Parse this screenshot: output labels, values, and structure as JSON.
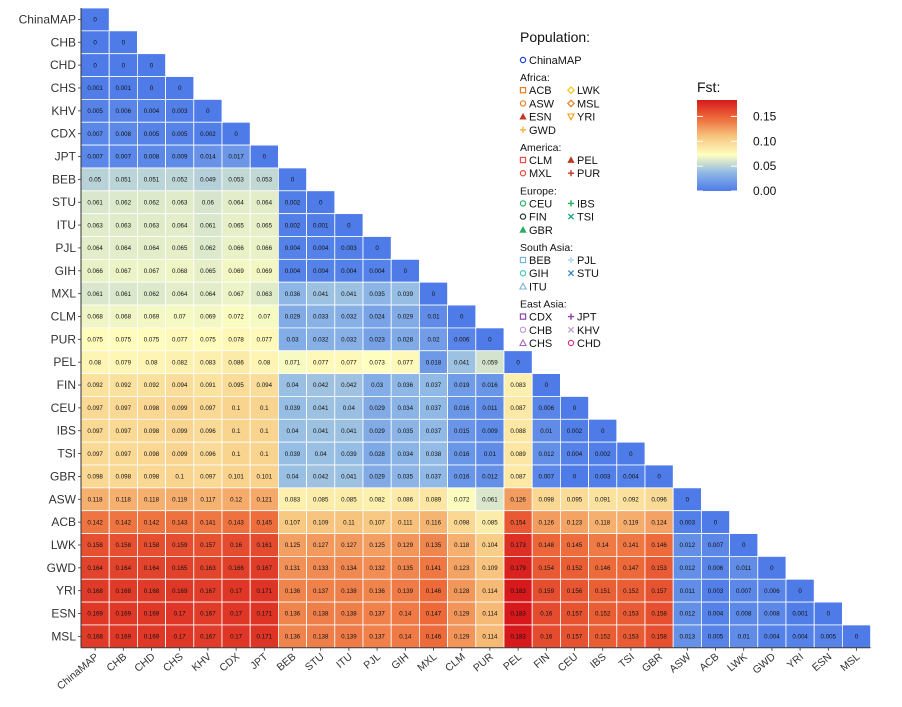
{
  "chart_data": {
    "type": "heatmap",
    "populations": [
      "ChinaMAP",
      "CHB",
      "CHD",
      "CHS",
      "KHV",
      "CDX",
      "JPT",
      "BEB",
      "STU",
      "ITU",
      "PJL",
      "GIH",
      "MXL",
      "CLM",
      "PUR",
      "PEL",
      "FIN",
      "CEU",
      "IBS",
      "TSI",
      "GBR",
      "ASW",
      "ACB",
      "LWK",
      "GWD",
      "YRI",
      "ESN",
      "MSL"
    ],
    "rows": [
      [
        "0"
      ],
      [
        "0",
        "0"
      ],
      [
        "0",
        "0",
        "0"
      ],
      [
        "0.001",
        "0.001",
        "0",
        "0"
      ],
      [
        "0.005",
        "0.006",
        "0.004",
        "0.003",
        "0"
      ],
      [
        "0.007",
        "0.008",
        "0.005",
        "0.005",
        "0.002",
        "0"
      ],
      [
        "0.007",
        "0.007",
        "0.008",
        "0.009",
        "0.014",
        "0.017",
        "0"
      ],
      [
        "0.05",
        "0.051",
        "0.051",
        "0.052",
        "0.049",
        "0.053",
        "0.053",
        "0"
      ],
      [
        "0.061",
        "0.062",
        "0.062",
        "0.063",
        "0.06",
        "0.064",
        "0.064",
        "0.002",
        "0"
      ],
      [
        "0.063",
        "0.063",
        "0.063",
        "0.064",
        "0.061",
        "0.065",
        "0.065",
        "0.002",
        "0.001",
        "0"
      ],
      [
        "0.064",
        "0.064",
        "0.064",
        "0.065",
        "0.062",
        "0.066",
        "0.066",
        "0.004",
        "0.004",
        "0.003",
        "0"
      ],
      [
        "0.066",
        "0.067",
        "0.067",
        "0.068",
        "0.065",
        "0.069",
        "0.069",
        "0.004",
        "0.004",
        "0.004",
        "0.004",
        "0"
      ],
      [
        "0.061",
        "0.061",
        "0.062",
        "0.064",
        "0.064",
        "0.067",
        "0.063",
        "0.036",
        "0.041",
        "0.041",
        "0.035",
        "0.039",
        "0"
      ],
      [
        "0.068",
        "0.068",
        "0.069",
        "0.07",
        "0.069",
        "0.072",
        "0.07",
        "0.029",
        "0.033",
        "0.032",
        "0.024",
        "0.029",
        "0.01",
        "0"
      ],
      [
        "0.075",
        "0.075",
        "0.075",
        "0.077",
        "0.075",
        "0.078",
        "0.077",
        "0.03",
        "0.032",
        "0.032",
        "0.023",
        "0.028",
        "0.02",
        "0.006",
        "0"
      ],
      [
        "0.08",
        "0.079",
        "0.08",
        "0.082",
        "0.083",
        "0.086",
        "0.08",
        "0.071",
        "0.077",
        "0.077",
        "0.073",
        "0.077",
        "0.018",
        "0.041",
        "0.059",
        "0"
      ],
      [
        "0.092",
        "0.092",
        "0.092",
        "0.094",
        "0.091",
        "0.095",
        "0.094",
        "0.04",
        "0.042",
        "0.042",
        "0.03",
        "0.036",
        "0.037",
        "0.019",
        "0.016",
        "0.083",
        "0"
      ],
      [
        "0.097",
        "0.097",
        "0.098",
        "0.099",
        "0.097",
        "0.1",
        "0.1",
        "0.039",
        "0.041",
        "0.04",
        "0.029",
        "0.034",
        "0.037",
        "0.016",
        "0.011",
        "0.087",
        "0.006",
        "0"
      ],
      [
        "0.097",
        "0.097",
        "0.098",
        "0.099",
        "0.096",
        "0.1",
        "0.1",
        "0.04",
        "0.041",
        "0.041",
        "0.029",
        "0.035",
        "0.037",
        "0.015",
        "0.009",
        "0.088",
        "0.01",
        "0.002",
        "0"
      ],
      [
        "0.097",
        "0.097",
        "0.098",
        "0.099",
        "0.096",
        "0.1",
        "0.1",
        "0.039",
        "0.04",
        "0.039",
        "0.028",
        "0.034",
        "0.038",
        "0.016",
        "0.01",
        "0.089",
        "0.012",
        "0.004",
        "0.002",
        "0"
      ],
      [
        "0.098",
        "0.098",
        "0.098",
        "0.1",
        "0.097",
        "0.101",
        "0.101",
        "0.04",
        "0.042",
        "0.041",
        "0.029",
        "0.035",
        "0.037",
        "0.016",
        "0.012",
        "0.087",
        "0.007",
        "0",
        "0.003",
        "0.004",
        "0"
      ],
      [
        "0.118",
        "0.118",
        "0.118",
        "0.119",
        "0.117",
        "0.12",
        "0.121",
        "0.083",
        "0.085",
        "0.085",
        "0.082",
        "0.086",
        "0.089",
        "0.072",
        "0.061",
        "0.126",
        "0.098",
        "0.095",
        "0.091",
        "0.092",
        "0.096",
        "0"
      ],
      [
        "0.142",
        "0.142",
        "0.142",
        "0.143",
        "0.141",
        "0.143",
        "0.145",
        "0.107",
        "0.109",
        "0.11",
        "0.107",
        "0.111",
        "0.116",
        "0.098",
        "0.085",
        "0.154",
        "0.126",
        "0.123",
        "0.118",
        "0.119",
        "0.124",
        "0.003",
        "0"
      ],
      [
        "0.158",
        "0.158",
        "0.158",
        "0.159",
        "0.157",
        "0.16",
        "0.161",
        "0.125",
        "0.127",
        "0.127",
        "0.125",
        "0.129",
        "0.135",
        "0.118",
        "0.104",
        "0.173",
        "0.148",
        "0.145",
        "0.14",
        "0.141",
        "0.146",
        "0.012",
        "0.007",
        "0"
      ],
      [
        "0.164",
        "0.164",
        "0.164",
        "0.165",
        "0.163",
        "0.166",
        "0.167",
        "0.131",
        "0.133",
        "0.134",
        "0.132",
        "0.135",
        "0.141",
        "0.123",
        "0.109",
        "0.179",
        "0.154",
        "0.152",
        "0.146",
        "0.147",
        "0.153",
        "0.012",
        "0.006",
        "0.011",
        "0"
      ],
      [
        "0.168",
        "0.168",
        "0.168",
        "0.169",
        "0.167",
        "0.17",
        "0.171",
        "0.136",
        "0.137",
        "0.138",
        "0.136",
        "0.139",
        "0.146",
        "0.128",
        "0.114",
        "0.183",
        "0.159",
        "0.156",
        "0.151",
        "0.152",
        "0.157",
        "0.011",
        "0.003",
        "0.007",
        "0.006",
        "0"
      ],
      [
        "0.169",
        "0.169",
        "0.169",
        "0.17",
        "0.167",
        "0.17",
        "0.171",
        "0.136",
        "0.138",
        "0.138",
        "0.137",
        "0.14",
        "0.147",
        "0.129",
        "0.114",
        "0.183",
        "0.16",
        "0.157",
        "0.152",
        "0.153",
        "0.158",
        "0.012",
        "0.004",
        "0.008",
        "0.008",
        "0.001",
        "0"
      ],
      [
        "0.168",
        "0.169",
        "0.169",
        "0.17",
        "0.167",
        "0.17",
        "0.171",
        "0.136",
        "0.138",
        "0.139",
        "0.137",
        "0.14",
        "0.146",
        "0.129",
        "0.114",
        "0.183",
        "0.16",
        "0.157",
        "0.152",
        "0.153",
        "0.158",
        "0.013",
        "0.005",
        "0.01",
        "0.004",
        "0.004",
        "0.005",
        "0"
      ]
    ],
    "color_scale": {
      "title": "Fst:",
      "ticks": [
        "0.15",
        "0.10",
        "0.05",
        "0.00"
      ],
      "tick_values": [
        0.15,
        0.1,
        0.05,
        0.0
      ],
      "range": [
        0,
        0.183
      ],
      "colors": [
        "#4E7BE8",
        "#8FB8E6",
        "#FFFFBF",
        "#F7C47E",
        "#ED6A3A",
        "#D7191C"
      ]
    },
    "legend": {
      "title": "Population:",
      "groups": [
        {
          "name": "",
          "items": [
            {
              "label": "ChinaMAP",
              "symbol": "circle-open",
              "color": "#1a3fd6"
            }
          ]
        },
        {
          "name": "Africa:",
          "items": [
            {
              "label": "ACB",
              "symbol": "square-open",
              "color": "#e67e22"
            },
            {
              "label": "LWK",
              "symbol": "diamond-open",
              "color": "#f1c40f"
            },
            {
              "label": "ASW",
              "symbol": "circle-open",
              "color": "#e67e22"
            },
            {
              "label": "MSL",
              "symbol": "diamond-open",
              "color": "#e67e22"
            },
            {
              "label": "ESN",
              "symbol": "triangle",
              "color": "#c0392b"
            },
            {
              "label": "YRI",
              "symbol": "triangle-down-open",
              "color": "#f39c12"
            },
            {
              "label": "GWD",
              "symbol": "plus",
              "color": "#f5b041"
            }
          ]
        },
        {
          "name": "America:",
          "items": [
            {
              "label": "CLM",
              "symbol": "square-open",
              "color": "#e74c3c"
            },
            {
              "label": "PEL",
              "symbol": "triangle",
              "color": "#c0392b"
            },
            {
              "label": "MXL",
              "symbol": "circle-open",
              "color": "#e74c3c"
            },
            {
              "label": "PUR",
              "symbol": "plus",
              "color": "#c0392b"
            }
          ]
        },
        {
          "name": "Europe:",
          "items": [
            {
              "label": "CEU",
              "symbol": "circle-open",
              "color": "#27ae60"
            },
            {
              "label": "IBS",
              "symbol": "plus",
              "color": "#27ae60"
            },
            {
              "label": "FIN",
              "symbol": "circle-open",
              "color": "#1e3d2f"
            },
            {
              "label": "TSI",
              "symbol": "cross",
              "color": "#16a085"
            },
            {
              "label": "GBR",
              "symbol": "triangle",
              "color": "#27ae60"
            }
          ]
        },
        {
          "name": "South Asia:",
          "items": [
            {
              "label": "BEB",
              "symbol": "square-open",
              "color": "#7fb3d5"
            },
            {
              "label": "PJL",
              "symbol": "plus",
              "color": "#aed6f1"
            },
            {
              "label": "GIH",
              "symbol": "circle-open",
              "color": "#48c9b0"
            },
            {
              "label": "STU",
              "symbol": "cross",
              "color": "#2e86c1"
            },
            {
              "label": "ITU",
              "symbol": "triangle-open",
              "color": "#7fb3d5"
            }
          ]
        },
        {
          "name": "East Asia:",
          "items": [
            {
              "label": "CDX",
              "symbol": "square-open",
              "color": "#8e44ad"
            },
            {
              "label": "JPT",
              "symbol": "plus",
              "color": "#8e44ad"
            },
            {
              "label": "CHB",
              "symbol": "circle-open",
              "color": "#c39bd3"
            },
            {
              "label": "KHV",
              "symbol": "cross",
              "color": "#c39bd3"
            },
            {
              "label": "CHS",
              "symbol": "triangle-open",
              "color": "#a569bd"
            },
            {
              "label": "CHD",
              "symbol": "circle-open",
              "color": "#d63384"
            }
          ]
        }
      ]
    }
  }
}
